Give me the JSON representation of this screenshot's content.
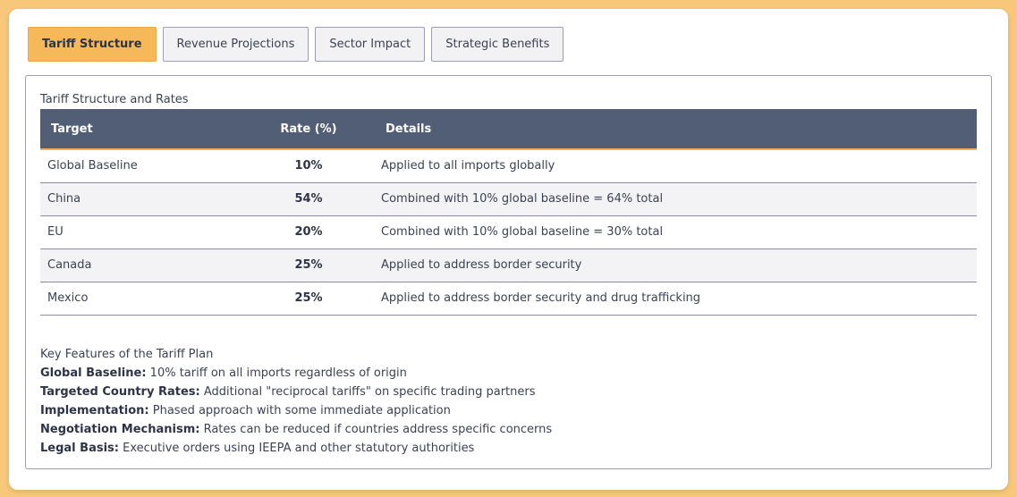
{
  "tabs": [
    {
      "label": "Tariff Structure",
      "active": true
    },
    {
      "label": "Revenue Projections",
      "active": false
    },
    {
      "label": "Sector Impact",
      "active": false
    },
    {
      "label": "Strategic Benefits",
      "active": false
    }
  ],
  "table": {
    "title": "Tariff Structure and Rates",
    "headers": {
      "target": "Target",
      "rate": "Rate (%)",
      "details": "Details"
    },
    "rows": [
      {
        "target": "Global Baseline",
        "rate": "10%",
        "details": "Applied to all imports globally"
      },
      {
        "target": "China",
        "rate": "54%",
        "details": "Combined with 10% global baseline = 64% total"
      },
      {
        "target": "EU",
        "rate": "20%",
        "details": "Combined with 10% global baseline = 30% total"
      },
      {
        "target": "Canada",
        "rate": "25%",
        "details": "Applied to address border security"
      },
      {
        "target": "Mexico",
        "rate": "25%",
        "details": "Applied to address border security and drug trafficking"
      }
    ]
  },
  "features": {
    "title": "Key Features of the Tariff Plan",
    "items": [
      {
        "label": "Global Baseline:",
        "text": " 10% tariff on all imports regardless of origin"
      },
      {
        "label": "Targeted Country Rates:",
        "text": " Additional \"reciprocal tariffs\" on specific trading partners"
      },
      {
        "label": "Implementation:",
        "text": " Phased approach with some immediate application"
      },
      {
        "label": "Negotiation Mechanism:",
        "text": " Rates can be reduced if countries address specific concerns"
      },
      {
        "label": "Legal Basis:",
        "text": " Executive orders using IEEPA and other statutory authorities"
      }
    ]
  },
  "colors": {
    "background": "#f7c77a",
    "active_tab": "#f6b95a",
    "table_header": "#525e76",
    "header_underline": "#f0b452"
  }
}
